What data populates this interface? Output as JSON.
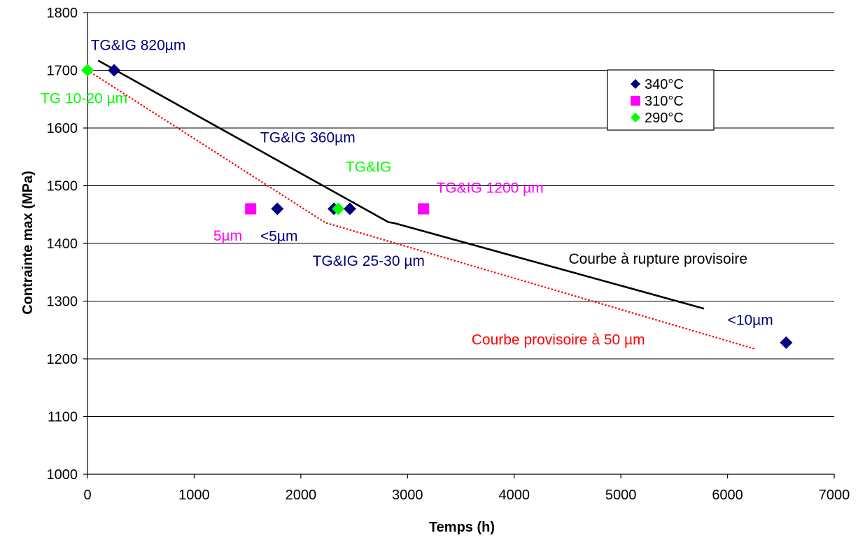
{
  "chart_data": {
    "type": "scatter",
    "title": "",
    "xlabel": "Temps (h)",
    "ylabel": "Contrainte max (MPa)",
    "xlim": [
      0,
      7000
    ],
    "ylim": [
      1000,
      1800
    ],
    "x_ticks": [
      "0",
      "1000",
      "2000",
      "3000",
      "4000",
      "5000",
      "6000",
      "7000"
    ],
    "y_ticks": [
      "1000",
      "1100",
      "1200",
      "1300",
      "1400",
      "1500",
      "1600",
      "1700",
      "1800"
    ],
    "grid": "horizontal",
    "legend_position": "top-right",
    "series": [
      {
        "name": "340°C",
        "marker": "diamond",
        "color": "#000080",
        "points": [
          [
            250,
            1700
          ],
          [
            1780,
            1460
          ],
          [
            2310,
            1460
          ],
          [
            2460,
            1460
          ],
          [
            6550,
            1228
          ]
        ]
      },
      {
        "name": "310°C",
        "marker": "square",
        "color": "#ff00ff",
        "points": [
          [
            1530,
            1460
          ],
          [
            3150,
            1460
          ]
        ]
      },
      {
        "name": "290°C",
        "marker": "diamond",
        "color": "#00ff00",
        "points": [
          [
            0,
            1700
          ],
          [
            2350,
            1460
          ]
        ]
      }
    ],
    "lines": [
      {
        "label": "Courbe à rupture provisoire",
        "color": "#000000",
        "style": "solid",
        "points": [
          [
            100,
            1717
          ],
          [
            2820,
            1437
          ],
          [
            2880,
            1435
          ],
          [
            5780,
            1287
          ]
        ]
      },
      {
        "label": "Courbe provisoire à 50 µm",
        "color": "#ff0000",
        "style": "dotted",
        "points": [
          [
            0,
            1700
          ],
          [
            2230,
            1436
          ],
          [
            6260,
            1217
          ]
        ]
      }
    ],
    "annotations": [
      {
        "text": "TG&IG  820µm",
        "color": "#000080",
        "x": 30,
        "y": 1735
      },
      {
        "text": "TG  10-20 µm",
        "color": "#00ff00",
        "x": -440,
        "y": 1643
      },
      {
        "text": "TG&IG  360µm",
        "color": "#000080",
        "x": 1620,
        "y": 1575
      },
      {
        "text": "TG&IG",
        "color": "#00ff00",
        "x": 2420,
        "y": 1524
      },
      {
        "text": "TG&IG 1200 µm",
        "color": "#ff00ff",
        "x": 3270,
        "y": 1488
      },
      {
        "text": "5µm",
        "color": "#ff00ff",
        "x": 1180,
        "y": 1405
      },
      {
        "text": "<5µm",
        "color": "#000080",
        "x": 1620,
        "y": 1404
      },
      {
        "text": "TG&IG 25-30 µm",
        "color": "#000080",
        "x": 2110,
        "y": 1361
      },
      {
        "text": "Courbe à rupture provisoire",
        "color": "#000000",
        "x": 4510,
        "y": 1365
      },
      {
        "text": "<10µm",
        "color": "#000080",
        "x": 6000,
        "y": 1259
      },
      {
        "text": "Courbe provisoire à 50 µm",
        "color": "#ff0000",
        "x": 3600,
        "y": 1225
      }
    ]
  }
}
